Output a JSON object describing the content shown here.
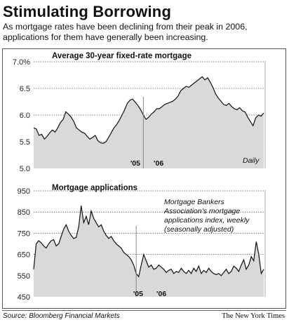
{
  "title": "Stimulating Borrowing",
  "subtitle": "As mortgage rates have been declining from their peak in 2006, applications for them have generally been increasing.",
  "source": "Source: Bloomberg Financial Markets",
  "credit": "The New York Times",
  "colors": {
    "fill": "#d9d9d9",
    "line": "#111111",
    "frame": "#555555"
  },
  "chart_data": [
    {
      "type": "area",
      "title": "Average 30-year fixed-rate mortgage",
      "annotation": "Daily",
      "ylim": [
        5.0,
        7.0
      ],
      "y_ticks": [
        5.0,
        5.5,
        6.0,
        6.5,
        7.0
      ],
      "y_tick_labels": [
        "5.0",
        "5.5",
        "6.0",
        "6.5",
        "7.0%"
      ],
      "x_tick_labels": [
        "'05",
        "'06"
      ],
      "year_boundary_index": 41,
      "values": [
        5.76,
        5.74,
        5.62,
        5.64,
        5.55,
        5.6,
        5.67,
        5.72,
        5.68,
        5.76,
        5.86,
        5.92,
        6.06,
        6.02,
        5.96,
        5.88,
        5.76,
        5.72,
        5.68,
        5.66,
        5.6,
        5.55,
        5.58,
        5.62,
        5.52,
        5.48,
        5.47,
        5.5,
        5.58,
        5.67,
        5.76,
        5.82,
        5.9,
        6.0,
        6.1,
        6.22,
        6.28,
        6.3,
        6.24,
        6.18,
        6.1,
        6.0,
        5.92,
        5.96,
        6.02,
        6.06,
        6.12,
        6.12,
        6.16,
        6.2,
        6.22,
        6.24,
        6.26,
        6.3,
        6.36,
        6.46,
        6.5,
        6.54,
        6.52,
        6.56,
        6.6,
        6.64,
        6.68,
        6.72,
        6.66,
        6.7,
        6.62,
        6.52,
        6.4,
        6.32,
        6.26,
        6.2,
        6.18,
        6.22,
        6.16,
        6.12,
        6.1,
        6.14,
        6.08,
        6.06,
        5.96,
        5.88,
        5.8,
        5.95,
        6.0,
        5.98,
        6.04
      ]
    },
    {
      "type": "area",
      "title": "Mortgage applications",
      "annotation": [
        "Mortgage Bankers",
        "Association's mortgage",
        "applications index, weekly",
        "(seasonally adjusted)"
      ],
      "ylim": [
        450,
        950
      ],
      "y_ticks": [
        450,
        550,
        650,
        750,
        850,
        950
      ],
      "y_tick_labels": [
        "450",
        "550",
        "650",
        "750",
        "850",
        "950"
      ],
      "x_tick_labels": [
        "'05",
        "'06"
      ],
      "year_boundary_index": 41,
      "values": [
        580,
        700,
        715,
        705,
        690,
        680,
        700,
        715,
        720,
        690,
        700,
        735,
        770,
        790,
        760,
        740,
        725,
        730,
        780,
        880,
        800,
        830,
        790,
        855,
        820,
        800,
        780,
        790,
        760,
        740,
        725,
        735,
        715,
        700,
        690,
        680,
        660,
        650,
        640,
        625,
        600,
        560,
        545,
        600,
        650,
        620,
        590,
        600,
        580,
        585,
        600,
        590,
        580,
        565,
        575,
        580,
        560,
        570,
        565,
        585,
        570,
        560,
        575,
        560,
        585,
        570,
        595,
        560,
        575,
        565,
        585,
        570,
        560,
        555,
        560,
        550,
        565,
        580,
        560,
        570,
        595,
        585,
        570,
        600,
        625,
        580,
        600,
        640,
        620,
        710,
        650,
        560,
        580
      ]
    }
  ]
}
